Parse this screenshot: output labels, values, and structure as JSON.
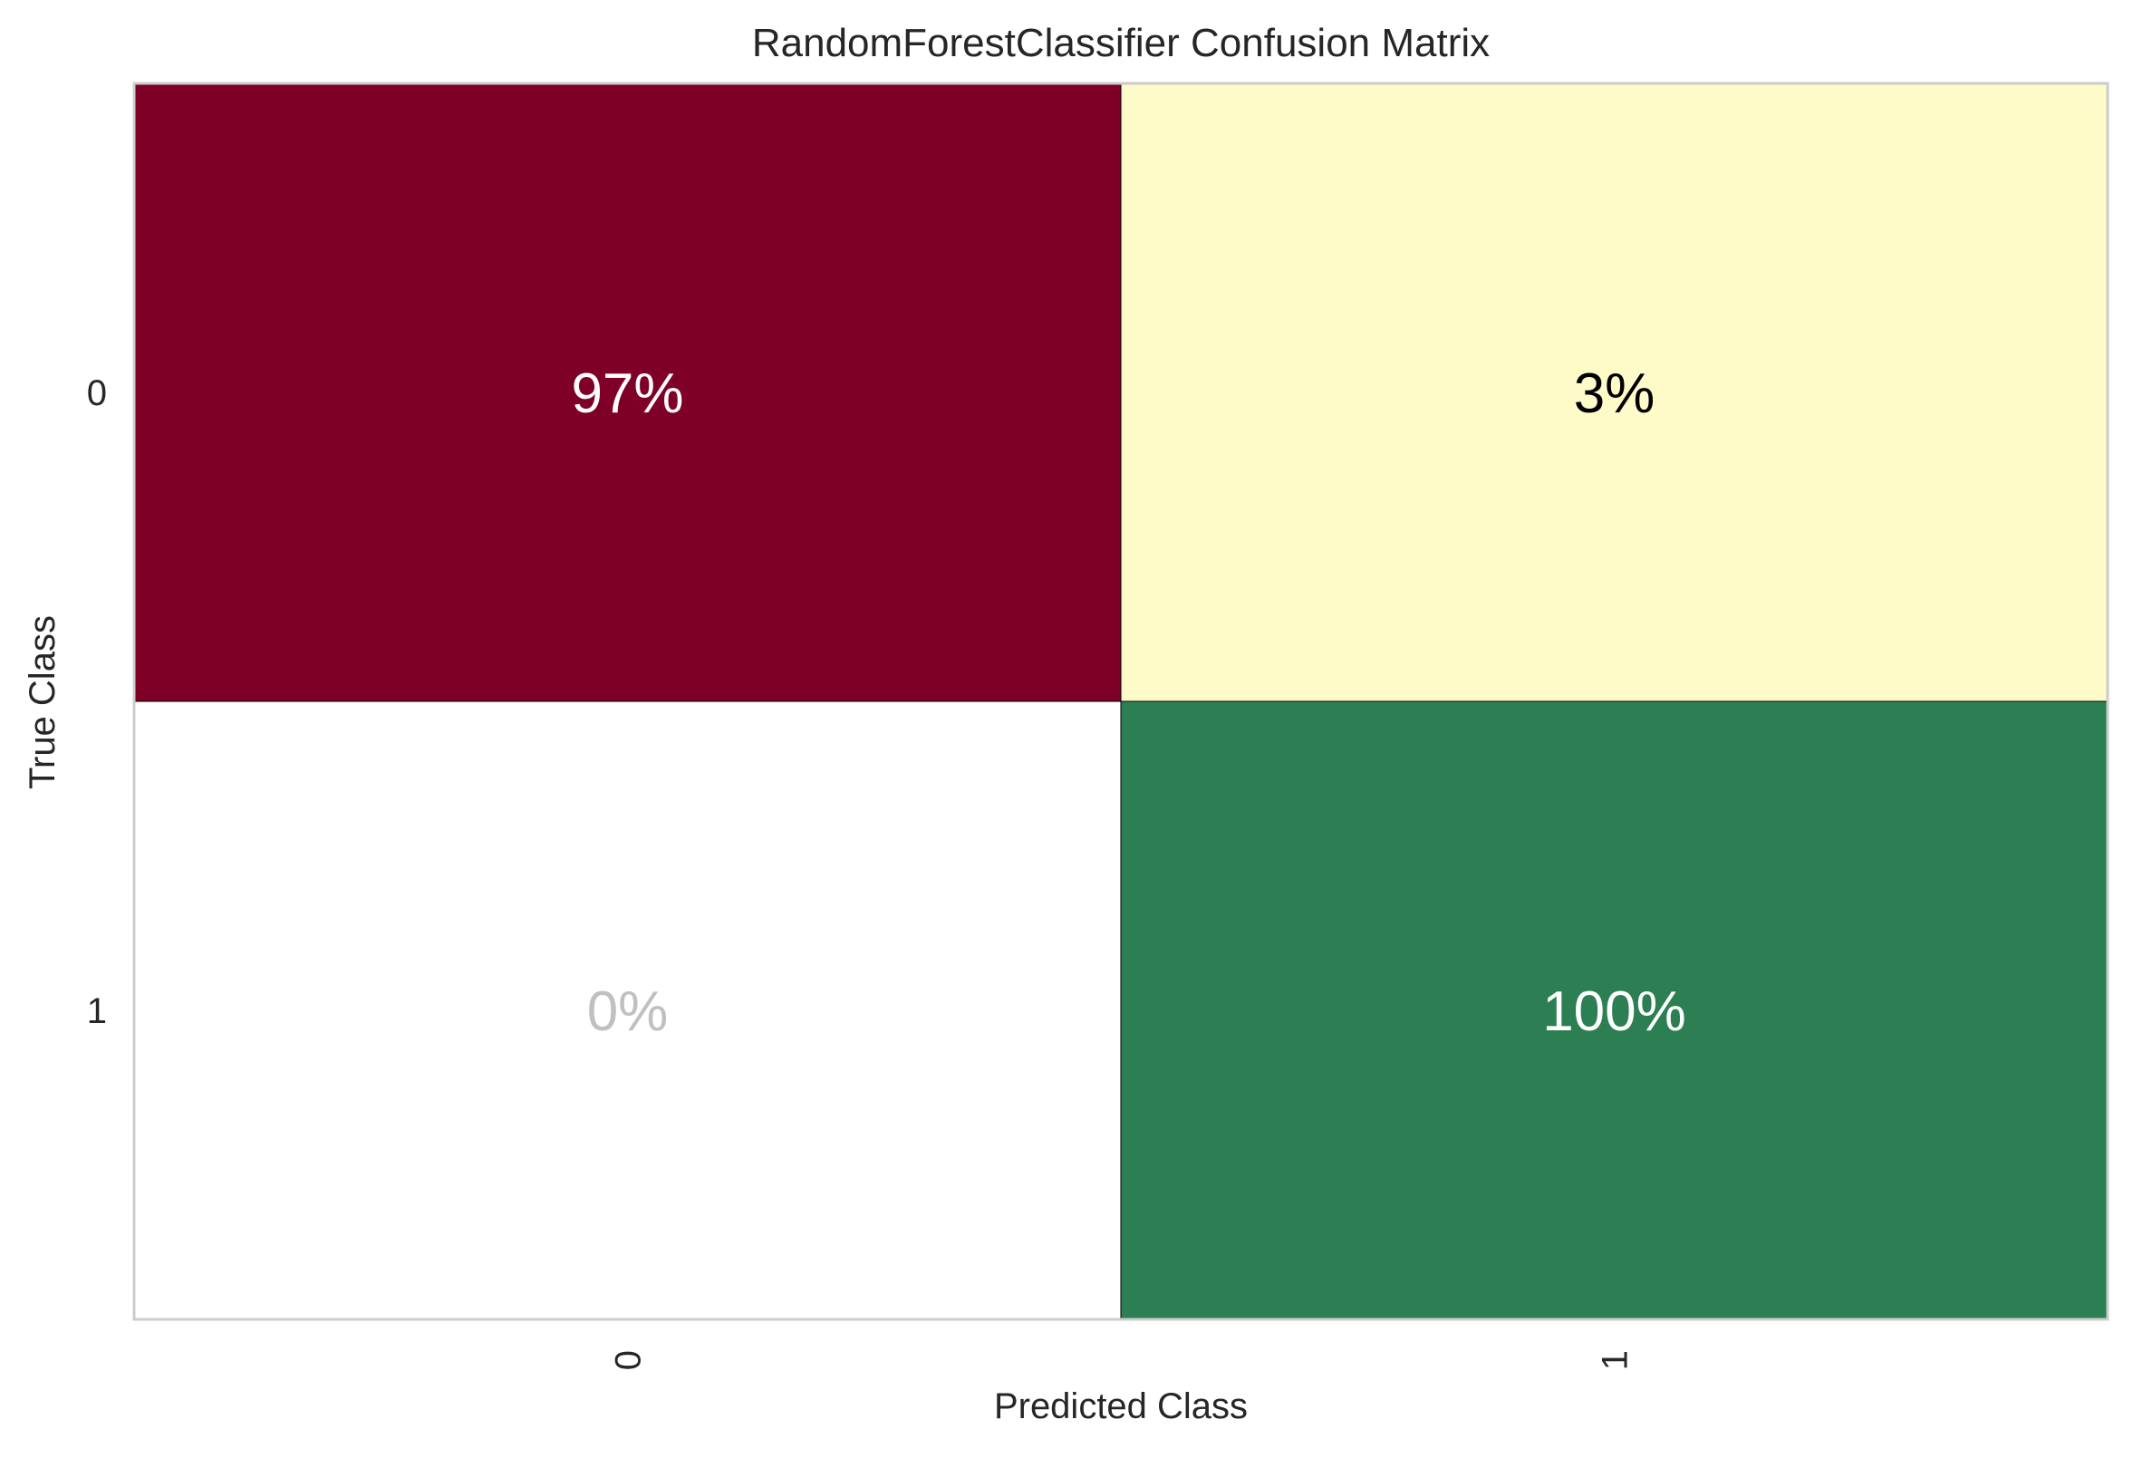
{
  "chart_data": {
    "type": "heatmap",
    "title": "RandomForestClassifier Confusion Matrix",
    "xlabel": "Predicted Class",
    "ylabel": "True Class",
    "x_categories": [
      "0",
      "1"
    ],
    "y_categories": [
      "0",
      "1"
    ],
    "values": [
      [
        97,
        3
      ],
      [
        0,
        100
      ]
    ],
    "cell_labels": [
      [
        "97%",
        "3%"
      ],
      [
        "0%",
        "100%"
      ]
    ],
    "unit": "%",
    "grid": false,
    "colors": {
      "cells": [
        [
          "#7f0026",
          "#fefbc8"
        ],
        [
          "#ffffff",
          "#2c7f52"
        ]
      ],
      "label_text": [
        [
          "#ffffff",
          "#000000"
        ],
        [
          "#c0c0c0",
          "#ffffff"
        ]
      ],
      "text": "#262626",
      "frame": "#cccccc",
      "cell_border": "#000000"
    }
  }
}
